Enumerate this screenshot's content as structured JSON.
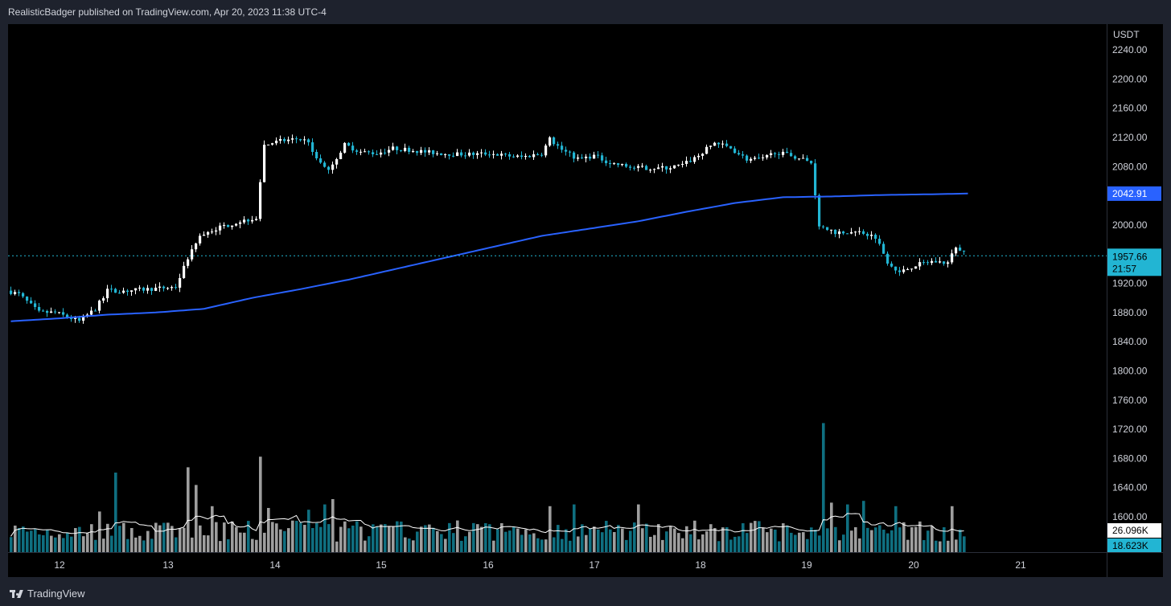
{
  "header": {
    "published_text": "RealisticBadger published on TradingView.com, Apr 20, 2023 11:38 UTC-4"
  },
  "footer": {
    "logo_text": "TradingView"
  },
  "colors": {
    "up": "#ffffff",
    "down": "#22b5d3",
    "ma": "#2962ff",
    "vol_up": "#9e9e9e",
    "vol_down": "#0f6f80",
    "vol_ma": "#ffffff",
    "last_price_line": "#22b5d3"
  },
  "chart_data": {
    "type": "candlestick",
    "currency_label": "USDT",
    "y_ticks": [
      "2240.00",
      "2200.00",
      "2160.00",
      "2120.00",
      "2080.00",
      "2000.00",
      "1920.00",
      "1880.00",
      "1840.00",
      "1800.00",
      "1760.00",
      "1720.00",
      "1680.00",
      "1640.00",
      "1600.00"
    ],
    "x_ticks": [
      "12",
      "13",
      "14",
      "15",
      "16",
      "17",
      "18",
      "19",
      "20",
      "21"
    ],
    "ma_label": "2042.91",
    "last_price_label": "1957.66",
    "countdown_label": "21:57",
    "volume_ma_label": "26.096K",
    "volume_label": "18.623K",
    "price_anchors": [
      [
        0,
        1910
      ],
      [
        3,
        1905
      ],
      [
        8,
        1880
      ],
      [
        12,
        1880
      ],
      [
        18,
        1868
      ],
      [
        22,
        1885
      ],
      [
        25,
        1910
      ],
      [
        30,
        1910
      ],
      [
        35,
        1912
      ],
      [
        42,
        1915
      ],
      [
        45,
        1955
      ],
      [
        48,
        1985
      ],
      [
        52,
        1995
      ],
      [
        58,
        2005
      ],
      [
        62,
        2010
      ],
      [
        64,
        2110
      ],
      [
        68,
        2115
      ],
      [
        72,
        2118
      ],
      [
        75,
        2115
      ],
      [
        77,
        2090
      ],
      [
        80,
        2075
      ],
      [
        84,
        2110
      ],
      [
        88,
        2100
      ],
      [
        92,
        2098
      ],
      [
        96,
        2105
      ],
      [
        100,
        2103
      ],
      [
        104,
        2100
      ],
      [
        108,
        2098
      ],
      [
        112,
        2097
      ],
      [
        116,
        2097
      ],
      [
        120,
        2098
      ],
      [
        124,
        2095
      ],
      [
        128,
        2093
      ],
      [
        133,
        2098
      ],
      [
        135,
        2118
      ],
      [
        138,
        2103
      ],
      [
        142,
        2090
      ],
      [
        146,
        2095
      ],
      [
        150,
        2085
      ],
      [
        156,
        2078
      ],
      [
        160,
        2078
      ],
      [
        164,
        2078
      ],
      [
        168,
        2082
      ],
      [
        172,
        2095
      ],
      [
        176,
        2113
      ],
      [
        180,
        2105
      ],
      [
        184,
        2090
      ],
      [
        188,
        2090
      ],
      [
        191,
        2100
      ],
      [
        195,
        2095
      ],
      [
        198,
        2090
      ],
      [
        200,
        2085
      ],
      [
        202,
        2000
      ],
      [
        206,
        1990
      ],
      [
        212,
        1990
      ],
      [
        216,
        1984
      ],
      [
        219,
        1950
      ],
      [
        222,
        1935
      ],
      [
        226,
        1945
      ],
      [
        230,
        1950
      ],
      [
        234,
        1948
      ],
      [
        236,
        1970
      ],
      [
        238,
        1962
      ]
    ],
    "ma_anchors": [
      [
        0,
        1868
      ],
      [
        12,
        1872
      ],
      [
        24,
        1877
      ],
      [
        36,
        1880
      ],
      [
        48,
        1885
      ],
      [
        60,
        1900
      ],
      [
        72,
        1912
      ],
      [
        84,
        1925
      ],
      [
        96,
        1940
      ],
      [
        108,
        1955
      ],
      [
        120,
        1970
      ],
      [
        132,
        1985
      ],
      [
        144,
        1995
      ],
      [
        156,
        2005
      ],
      [
        168,
        2018
      ],
      [
        180,
        2030
      ],
      [
        192,
        2038
      ],
      [
        204,
        2039
      ],
      [
        216,
        2041
      ],
      [
        228,
        2042
      ],
      [
        238,
        2043
      ]
    ],
    "volume_spikes": [
      [
        22,
        2.3
      ],
      [
        24,
        1.6
      ],
      [
        26,
        4.5
      ],
      [
        44,
        4.8
      ],
      [
        46,
        3.8
      ],
      [
        50,
        2.6
      ],
      [
        62,
        5.4
      ],
      [
        64,
        2.5
      ],
      [
        74,
        2.4
      ],
      [
        78,
        2.7
      ],
      [
        80,
        3.0
      ],
      [
        134,
        2.6
      ],
      [
        140,
        2.7
      ],
      [
        156,
        2.7
      ],
      [
        202,
        7.3
      ],
      [
        204,
        2.8
      ],
      [
        208,
        2.7
      ],
      [
        212,
        2.9
      ],
      [
        220,
        2.6
      ],
      [
        234,
        2.6
      ]
    ]
  }
}
